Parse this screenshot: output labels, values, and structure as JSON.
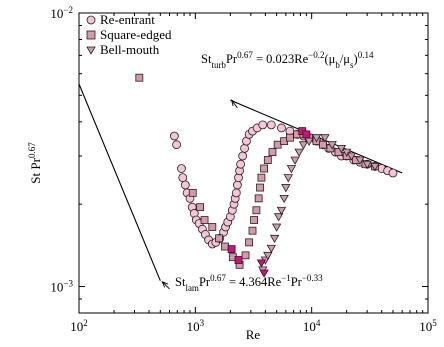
{
  "chart_data": {
    "type": "scatter",
    "title": "",
    "xlabel": "Re",
    "ylabel_html": "St Pr<sup>0.67</sup>",
    "ylabel_base": "St Pr",
    "ylabel_exp": "0.67",
    "x_scale": "log",
    "y_scale": "log",
    "xlim": [
      100,
      100000
    ],
    "ylim": [
      0.0008,
      0.01
    ],
    "grid": false,
    "legend_position": "top-left",
    "x_ticks": [
      {
        "value": 100,
        "base": "10",
        "exp": "2"
      },
      {
        "value": 1000,
        "base": "10",
        "exp": "3"
      },
      {
        "value": 10000,
        "base": "10",
        "exp": "4"
      },
      {
        "value": 100000,
        "base": "10",
        "exp": "5"
      }
    ],
    "y_ticks": [
      {
        "value": 0.001,
        "base": "10",
        "exp": "−3"
      },
      {
        "value": 0.01,
        "base": "10",
        "exp": "−2"
      }
    ],
    "series": [
      {
        "name": "Re-entrant",
        "marker": "circle",
        "fill": "#f2c6d6",
        "stroke": "#2a1a22",
        "points": [
          [
            660,
            0.00355
          ],
          [
            690,
            0.0033
          ],
          [
            760,
            0.0027
          ],
          [
            780,
            0.0025
          ],
          [
            820,
            0.00235
          ],
          [
            850,
            0.0022
          ],
          [
            900,
            0.0021
          ],
          [
            940,
            0.00195
          ],
          [
            980,
            0.00185
          ],
          [
            1020,
            0.00175
          ],
          [
            1080,
            0.0017
          ],
          [
            1150,
            0.00162
          ],
          [
            1220,
            0.00155
          ],
          [
            1300,
            0.00148
          ],
          [
            1400,
            0.00143
          ],
          [
            1500,
            0.00145
          ],
          [
            1620,
            0.0015
          ],
          [
            1750,
            0.00158
          ],
          [
            1820,
            0.00165
          ],
          [
            1900,
            0.00172
          ],
          [
            2000,
            0.0018
          ],
          [
            2080,
            0.0019
          ],
          [
            2150,
            0.002
          ],
          [
            2200,
            0.0021
          ],
          [
            2250,
            0.0022
          ],
          [
            2300,
            0.00235
          ],
          [
            2350,
            0.0025
          ],
          [
            2400,
            0.00265
          ],
          [
            2450,
            0.0028
          ],
          [
            2550,
            0.003
          ],
          [
            2650,
            0.0032
          ],
          [
            2750,
            0.0034
          ],
          [
            2900,
            0.0036
          ],
          [
            3100,
            0.0037
          ],
          [
            3400,
            0.0038
          ],
          [
            3800,
            0.0039
          ],
          [
            4500,
            0.0039
          ],
          [
            5500,
            0.0038
          ],
          [
            6500,
            0.0037
          ],
          [
            7500,
            0.0036
          ],
          [
            8500,
            0.00355
          ],
          [
            9500,
            0.0035
          ],
          [
            11000,
            0.0034
          ],
          [
            12500,
            0.0033
          ],
          [
            14000,
            0.0032
          ],
          [
            16000,
            0.0031
          ],
          [
            18000,
            0.003
          ],
          [
            20000,
            0.003
          ],
          [
            23000,
            0.0029
          ],
          [
            26000,
            0.00285
          ],
          [
            30000,
            0.0028
          ],
          [
            35000,
            0.00275
          ],
          [
            40000,
            0.0027
          ],
          [
            45000,
            0.00265
          ],
          [
            50000,
            0.0026
          ]
        ]
      },
      {
        "name": "Square-edged",
        "marker": "square",
        "fill": "#d59aa8",
        "stroke": "#2a1a22",
        "points": [
          [
            330,
            0.0058
          ],
          [
            950,
            0.0022
          ],
          [
            1100,
            0.00195
          ],
          [
            1200,
            0.00175
          ],
          [
            1400,
            0.00165
          ],
          [
            1600,
            0.0015
          ],
          [
            1800,
            0.0014
          ],
          [
            2100,
            0.00128
          ],
          [
            2400,
            0.0012
          ],
          [
            2700,
            0.0013
          ],
          [
            2900,
            0.00145
          ],
          [
            3100,
            0.0016
          ],
          [
            3200,
            0.00175
          ],
          [
            3350,
            0.0019
          ],
          [
            3500,
            0.0021
          ],
          [
            3600,
            0.0023
          ],
          [
            3700,
            0.0025
          ],
          [
            3900,
            0.0027
          ],
          [
            4200,
            0.0029
          ],
          [
            4600,
            0.0031
          ],
          [
            5100,
            0.0033
          ],
          [
            5800,
            0.0034
          ],
          [
            6500,
            0.0035
          ],
          [
            7500,
            0.0036
          ],
          [
            8500,
            0.0036
          ],
          [
            9500,
            0.0035
          ],
          [
            11000,
            0.0034
          ],
          [
            12500,
            0.0033
          ],
          [
            14500,
            0.0032
          ],
          [
            17000,
            0.0031
          ],
          [
            20000,
            0.003
          ],
          [
            24000,
            0.0029
          ],
          [
            29000,
            0.0028
          ],
          [
            35000,
            0.00275
          ]
        ]
      },
      {
        "name": "Bell-mouth",
        "marker": "triangle-down",
        "fill": "#c9a1ad",
        "stroke": "#2a1a22",
        "points": [
          [
            3800,
            0.00115
          ],
          [
            4000,
            0.00125
          ],
          [
            4200,
            0.0013
          ],
          [
            4500,
            0.00138
          ],
          [
            4800,
            0.0015
          ],
          [
            5000,
            0.00165
          ],
          [
            5200,
            0.0018
          ],
          [
            5500,
            0.0019
          ],
          [
            5800,
            0.0021
          ],
          [
            6000,
            0.0023
          ],
          [
            6300,
            0.0025
          ],
          [
            6700,
            0.0027
          ],
          [
            7200,
            0.0029
          ],
          [
            7800,
            0.0031
          ],
          [
            8500,
            0.0033
          ],
          [
            9500,
            0.0034
          ],
          [
            11000,
            0.0035
          ],
          [
            13000,
            0.0035
          ],
          [
            15000,
            0.0033
          ],
          [
            18000,
            0.0032
          ],
          [
            20000,
            0.0031
          ],
          [
            22000,
            0.003
          ],
          [
            26000,
            0.0029
          ],
          [
            30000,
            0.0028
          ],
          [
            35000,
            0.00275
          ]
        ]
      },
      {
        "name": "",
        "marker": "square",
        "fill": "#c2187a",
        "stroke": "#4a0a2a",
        "points": [
          [
            2050,
            0.00137
          ],
          [
            2350,
            0.00125
          ],
          [
            8300,
            0.0037
          ],
          [
            9000,
            0.0036
          ]
        ]
      },
      {
        "name": "",
        "marker": "triangle-down",
        "fill": "#c2187a",
        "stroke": "#4a0a2a",
        "points": [
          [
            3700,
            0.00122
          ],
          [
            3900,
            0.00112
          ]
        ]
      }
    ],
    "lines": [
      {
        "name": "St_lam",
        "points": [
          [
            100,
            0.0055
          ],
          [
            500,
            0.00105
          ]
        ],
        "label_base": "St",
        "label_sub": "lam",
        "label_pr": "Pr",
        "label_pr_exp": "0.67",
        "label_eq": " = 4.364Re",
        "label_re_exp": "−1",
        "label_pr2": "Pr",
        "label_pr2_exp": "−0.33"
      },
      {
        "name": "St_turb",
        "points": [
          [
            2000,
            0.0048
          ],
          [
            60000,
            0.0026
          ]
        ],
        "label_base": "St",
        "label_sub": "turb",
        "label_pr": "Pr",
        "label_pr_exp": "0.67",
        "label_eq": " = 0.023Re",
        "label_re_exp": "−0.2",
        "label_ratio": "(μ",
        "label_mu_b": "b",
        "label_slash": "/μ",
        "label_mu_s": "s",
        "label_close": ")",
        "label_ratio_exp": "0.14"
      }
    ],
    "arrows": [
      {
        "from": [
          600,
          0.00098
        ],
        "to": [
          520,
          0.00104
        ]
      },
      {
        "from": [
          2300,
          0.0045
        ],
        "to": [
          2050,
          0.0048
        ]
      }
    ]
  }
}
